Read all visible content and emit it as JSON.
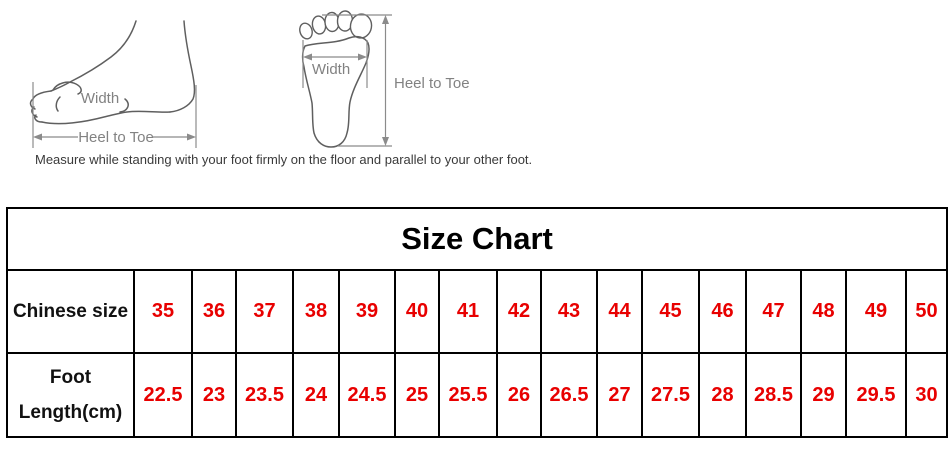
{
  "diagrams": {
    "caption": "Measure while standing with your foot firmly on the floor and parallel to your other foot.",
    "side_view": {
      "width_label": "Width",
      "length_label": "Heel to Toe"
    },
    "top_view": {
      "width_label": "Width",
      "length_label": "Heel to Toe"
    }
  },
  "size_chart": {
    "title": "Size Chart",
    "value_color": "#e80000",
    "rows": [
      {
        "label": "Chinese size",
        "values": [
          "35",
          "36",
          "37",
          "38",
          "39",
          "40",
          "41",
          "42",
          "43",
          "44",
          "45",
          "46",
          "47",
          "48",
          "49",
          "50"
        ]
      },
      {
        "label": "Foot Length(cm)",
        "values": [
          "22.5",
          "23",
          "23.5",
          "24",
          "24.5",
          "25",
          "25.5",
          "26",
          "26.5",
          "27",
          "27.5",
          "28",
          "28.5",
          "29",
          "29.5",
          "30"
        ]
      }
    ]
  }
}
